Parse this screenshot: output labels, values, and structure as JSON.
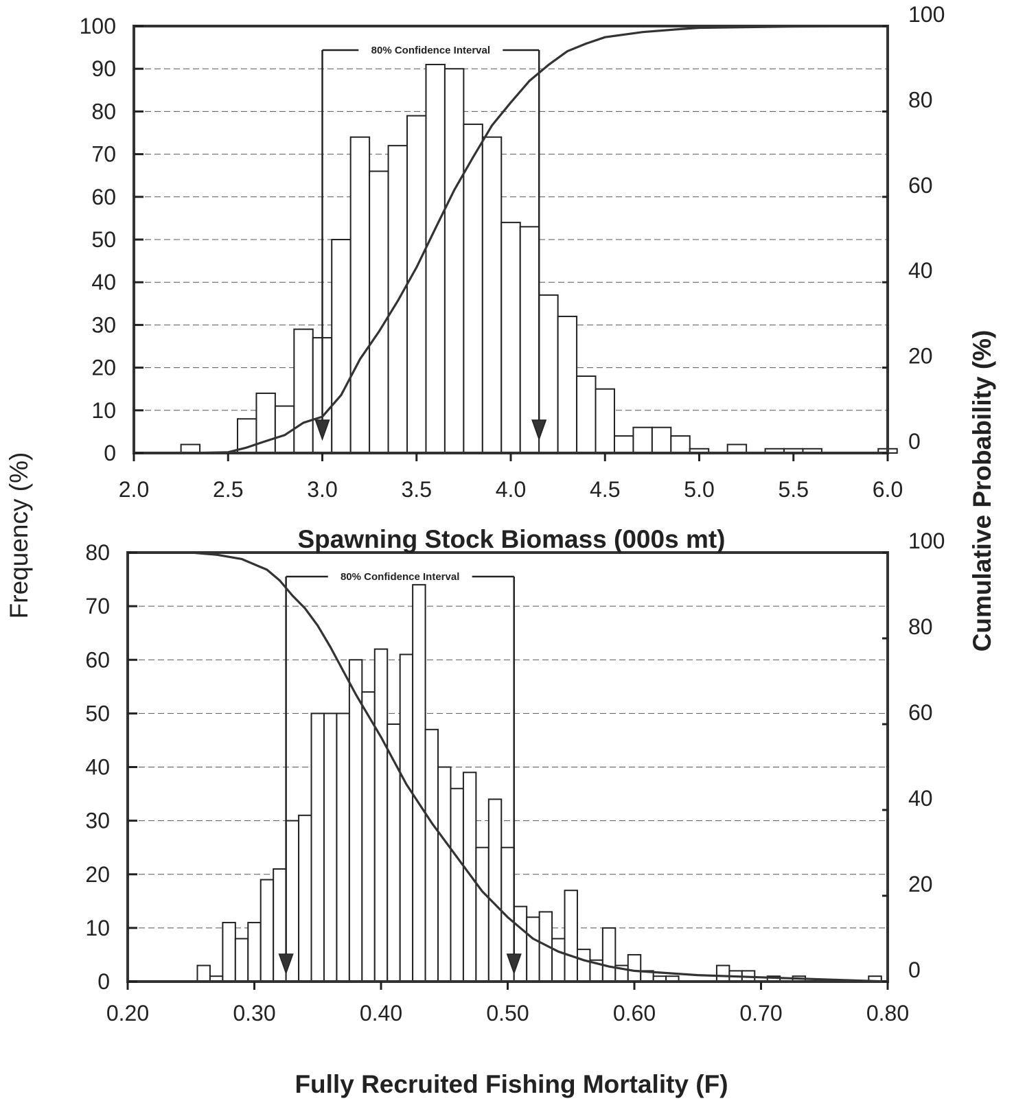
{
  "figure": {
    "left_axis_title": "Frequency (%)",
    "right_axis_title": "Cumulative Probability (%)"
  },
  "chart_data": [
    {
      "type": "bar",
      "xlabel": "Spawning Stock Biomass (000s mt)",
      "ylabel": "Frequency (%)",
      "y2label": "Cumulative Probability (%)",
      "xlim": [
        2.0,
        6.0
      ],
      "ylim": [
        0,
        100
      ],
      "y2lim": [
        0,
        100
      ],
      "xticks": [
        "2.0",
        "2.5",
        "3.0",
        "3.5",
        "4.0",
        "4.5",
        "5.0",
        "5.5",
        "6.0"
      ],
      "yticks": [
        "0",
        "10",
        "20",
        "30",
        "40",
        "50",
        "60",
        "70",
        "80",
        "90",
        "100"
      ],
      "y2ticks": [
        "0",
        "20",
        "40",
        "60",
        "80",
        "100"
      ],
      "grid": "horizontal dashed",
      "bin_width": 0.1,
      "bins": [
        {
          "x": 2.3,
          "y": 2
        },
        {
          "x": 2.6,
          "y": 8
        },
        {
          "x": 2.7,
          "y": 14
        },
        {
          "x": 2.8,
          "y": 11
        },
        {
          "x": 2.9,
          "y": 29
        },
        {
          "x": 3.0,
          "y": 27
        },
        {
          "x": 3.1,
          "y": 50
        },
        {
          "x": 3.2,
          "y": 74
        },
        {
          "x": 3.3,
          "y": 66
        },
        {
          "x": 3.4,
          "y": 72
        },
        {
          "x": 3.5,
          "y": 79
        },
        {
          "x": 3.6,
          "y": 91
        },
        {
          "x": 3.7,
          "y": 90
        },
        {
          "x": 3.8,
          "y": 77
        },
        {
          "x": 3.9,
          "y": 74
        },
        {
          "x": 4.0,
          "y": 54
        },
        {
          "x": 4.1,
          "y": 53
        },
        {
          "x": 4.2,
          "y": 37
        },
        {
          "x": 4.3,
          "y": 32
        },
        {
          "x": 4.4,
          "y": 18
        },
        {
          "x": 4.5,
          "y": 15
        },
        {
          "x": 4.6,
          "y": 4
        },
        {
          "x": 4.7,
          "y": 6
        },
        {
          "x": 4.8,
          "y": 6
        },
        {
          "x": 4.9,
          "y": 4
        },
        {
          "x": 5.0,
          "y": 1
        },
        {
          "x": 5.2,
          "y": 2
        },
        {
          "x": 5.4,
          "y": 1
        },
        {
          "x": 5.5,
          "y": 1
        },
        {
          "x": 5.6,
          "y": 1
        },
        {
          "x": 6.0,
          "y": 1
        }
      ],
      "cumulative": {
        "x": [
          2.0,
          2.3,
          2.5,
          2.6,
          2.7,
          2.8,
          2.9,
          3.0,
          3.1,
          3.2,
          3.3,
          3.4,
          3.5,
          3.6,
          3.7,
          3.8,
          3.9,
          4.0,
          4.1,
          4.2,
          4.3,
          4.4,
          4.5,
          4.7,
          4.9,
          5.0,
          5.5,
          6.0
        ],
        "y": [
          0,
          0,
          0.2,
          1.3,
          2.8,
          4.2,
          7.1,
          8.5,
          13.6,
          22,
          28.4,
          35.6,
          43.5,
          52.6,
          61.6,
          69.3,
          76.7,
          82.1,
          87.2,
          90.9,
          94.1,
          95.9,
          97.4,
          98.6,
          99.3,
          99.6,
          99.9,
          100
        ]
      },
      "confidence_interval": {
        "label": "80% Confidence Interval",
        "lower": 3.0,
        "upper": 4.15
      }
    },
    {
      "type": "bar",
      "xlabel": "Fully Recruited Fishing Mortality (F)",
      "ylabel": "Frequency (%)",
      "y2label": "Cumulative Probability (%)",
      "xlim": [
        0.2,
        0.8
      ],
      "ylim": [
        0,
        80
      ],
      "y2lim": [
        0,
        100
      ],
      "xticks": [
        "0.20",
        "0.30",
        "0.40",
        "0.50",
        "0.60",
        "0.70",
        "0.80"
      ],
      "yticks": [
        "0",
        "10",
        "20",
        "30",
        "40",
        "50",
        "60",
        "70",
        "80"
      ],
      "y2ticks": [
        "0",
        "20",
        "40",
        "60",
        "80",
        "100"
      ],
      "grid": "horizontal dashed",
      "bin_width": 0.01,
      "bins": [
        {
          "x": 0.26,
          "y": 3
        },
        {
          "x": 0.27,
          "y": 1
        },
        {
          "x": 0.28,
          "y": 11
        },
        {
          "x": 0.29,
          "y": 8
        },
        {
          "x": 0.3,
          "y": 11
        },
        {
          "x": 0.31,
          "y": 19
        },
        {
          "x": 0.32,
          "y": 21
        },
        {
          "x": 0.33,
          "y": 30
        },
        {
          "x": 0.34,
          "y": 31
        },
        {
          "x": 0.35,
          "y": 50
        },
        {
          "x": 0.36,
          "y": 50
        },
        {
          "x": 0.37,
          "y": 50
        },
        {
          "x": 0.38,
          "y": 60
        },
        {
          "x": 0.39,
          "y": 54
        },
        {
          "x": 0.4,
          "y": 62
        },
        {
          "x": 0.41,
          "y": 48
        },
        {
          "x": 0.42,
          "y": 61
        },
        {
          "x": 0.43,
          "y": 74
        },
        {
          "x": 0.44,
          "y": 47
        },
        {
          "x": 0.45,
          "y": 40
        },
        {
          "x": 0.46,
          "y": 36
        },
        {
          "x": 0.47,
          "y": 39
        },
        {
          "x": 0.48,
          "y": 25
        },
        {
          "x": 0.49,
          "y": 34
        },
        {
          "x": 0.5,
          "y": 25
        },
        {
          "x": 0.51,
          "y": 14
        },
        {
          "x": 0.52,
          "y": 12
        },
        {
          "x": 0.53,
          "y": 13
        },
        {
          "x": 0.54,
          "y": 8
        },
        {
          "x": 0.55,
          "y": 17
        },
        {
          "x": 0.56,
          "y": 6
        },
        {
          "x": 0.57,
          "y": 4
        },
        {
          "x": 0.58,
          "y": 10
        },
        {
          "x": 0.59,
          "y": 3
        },
        {
          "x": 0.6,
          "y": 5
        },
        {
          "x": 0.61,
          "y": 2
        },
        {
          "x": 0.62,
          "y": 1
        },
        {
          "x": 0.63,
          "y": 1
        },
        {
          "x": 0.67,
          "y": 3
        },
        {
          "x": 0.68,
          "y": 2
        },
        {
          "x": 0.69,
          "y": 2
        },
        {
          "x": 0.71,
          "y": 1
        },
        {
          "x": 0.73,
          "y": 1
        },
        {
          "x": 0.79,
          "y": 1
        }
      ],
      "cumulative": {
        "x": [
          0.2,
          0.25,
          0.27,
          0.29,
          0.31,
          0.32,
          0.33,
          0.34,
          0.35,
          0.36,
          0.38,
          0.4,
          0.42,
          0.44,
          0.46,
          0.48,
          0.5,
          0.52,
          0.54,
          0.56,
          0.58,
          0.6,
          0.65,
          0.7,
          0.8
        ],
        "y": [
          100,
          100,
          99.5,
          98.5,
          96,
          93.5,
          90,
          87,
          83,
          78,
          67,
          57,
          46,
          37,
          29,
          21,
          15,
          10,
          7,
          5,
          3.5,
          2.5,
          1.5,
          1,
          0
        ]
      },
      "confidence_interval": {
        "label": "80% Confidence Interval",
        "lower": 0.325,
        "upper": 0.505
      }
    }
  ]
}
